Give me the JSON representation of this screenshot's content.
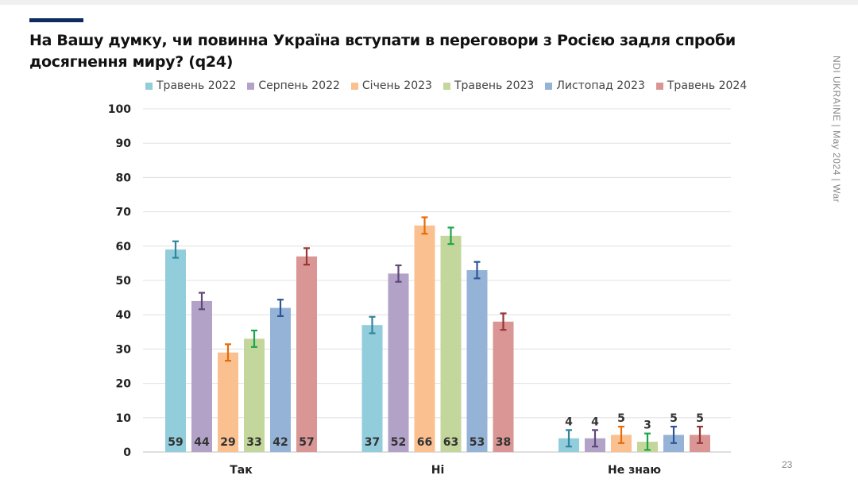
{
  "title": "На Вашу думку, чи повинна Україна вступати в переговори з Росією задля спроби досягнення миру? (q24)",
  "side_text": "NDI UKRAINE | May 2024 | War",
  "page_number": "23",
  "chart_data": {
    "type": "bar",
    "title": "На Вашу думку, чи повинна Україна вступати в переговори з Росією задля спроби досягнення миру? (q24)",
    "categories": [
      "Так",
      "Ні",
      "Не знаю"
    ],
    "ylim": [
      0,
      100
    ],
    "yticks": [
      "0",
      "10",
      "20",
      "30",
      "40",
      "50",
      "60",
      "70",
      "80",
      "90",
      "100"
    ],
    "grid": true,
    "legend_position": "top",
    "error_bars": true,
    "series": [
      {
        "name": "Травень 2022",
        "values": [
          59,
          37,
          4
        ],
        "color": "#92cddc",
        "err_color": "#31859c"
      },
      {
        "name": "Серпень 2022",
        "values": [
          44,
          52,
          4
        ],
        "color": "#b3a2c7",
        "err_color": "#5f497a"
      },
      {
        "name": "Січень 2023",
        "values": [
          29,
          66,
          5
        ],
        "color": "#fac090",
        "err_color": "#e46c0a"
      },
      {
        "name": "Травень 2023",
        "values": [
          33,
          63,
          3
        ],
        "color": "#c3d69b",
        "err_color": "#1aa64a"
      },
      {
        "name": "Листопад 2023",
        "values": [
          42,
          53,
          5
        ],
        "color": "#95b3d7",
        "err_color": "#2f5597"
      },
      {
        "name": "Травень 2024",
        "values": [
          57,
          38,
          5
        ],
        "color": "#d99694",
        "err_color": "#953735"
      }
    ]
  }
}
